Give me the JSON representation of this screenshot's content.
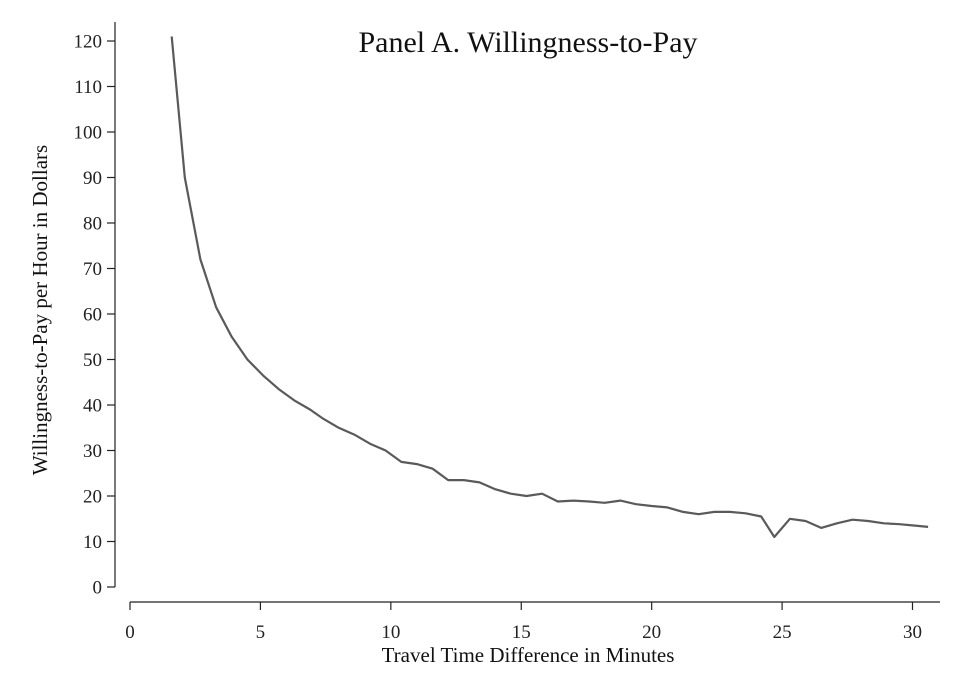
{
  "chart_data": {
    "type": "line",
    "title": "Panel A. Willingness-to-Pay",
    "xlabel": "Travel Time Difference in Minutes",
    "ylabel": "Willingness-to-Pay per Hour in Dollars",
    "xlim": [
      0,
      31
    ],
    "ylim": [
      0,
      120
    ],
    "xticks": [
      0,
      5,
      10,
      15,
      20,
      25,
      30
    ],
    "yticks": [
      0,
      10,
      20,
      30,
      40,
      50,
      60,
      70,
      80,
      90,
      100,
      110,
      120
    ],
    "grid": false,
    "series": [
      {
        "x": [
          1.6,
          2.1,
          2.7,
          3.3,
          3.9,
          4.5,
          5.1,
          5.7,
          6.3,
          6.9,
          7.4,
          8.0,
          8.6,
          9.2,
          9.8,
          10.4,
          11.0,
          11.6,
          12.2,
          12.8,
          13.4,
          14.0,
          14.6,
          15.2,
          15.8,
          16.4,
          17.0,
          17.6,
          18.2,
          18.8,
          19.4,
          20.0,
          20.6,
          21.2,
          21.8,
          22.4,
          23.0,
          23.6,
          24.2,
          24.7,
          25.3,
          25.9,
          26.5,
          27.1,
          27.7,
          28.3,
          28.9,
          29.5,
          30.1,
          30.6
        ],
        "values": [
          121,
          90,
          72,
          61.5,
          55,
          50,
          46.5,
          43.5,
          41,
          39,
          37,
          35,
          33.5,
          31.5,
          30,
          27.5,
          27,
          26,
          23.5,
          23.5,
          23,
          21.5,
          20.5,
          20,
          20.5,
          18.8,
          19,
          18.8,
          18.5,
          19,
          18.2,
          17.8,
          17.5,
          16.5,
          16,
          16.5,
          16.5,
          16.2,
          15.5,
          11,
          15,
          14.5,
          13,
          14,
          14.8,
          14.5,
          14,
          13.8,
          13.5,
          13.2
        ]
      }
    ]
  }
}
